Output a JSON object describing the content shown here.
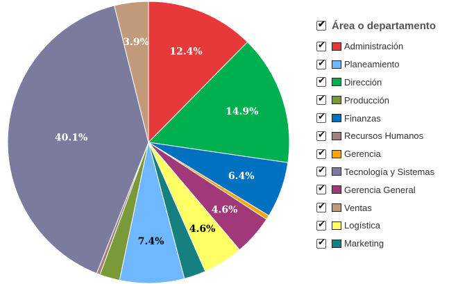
{
  "chart_data": {
    "type": "pie",
    "legend_title": "Área o departamento",
    "legend_position": "right",
    "slices": [
      {
        "name": "Administración",
        "value": 12.4,
        "label": "12.4%",
        "color": "#e8393a",
        "label_color": "#ffffff"
      },
      {
        "name": "Dirección",
        "value": 14.9,
        "label": "14.9%",
        "color": "#00b050",
        "label_color": "#ffffff"
      },
      {
        "name": "Finanzas",
        "value": 6.4,
        "label": "6.4%",
        "color": "#0070c0",
        "label_color": "#ffffff"
      },
      {
        "name": "Gerencia",
        "value": 0.5,
        "label": "",
        "color": "#ffa500",
        "label_color": "#ffffff"
      },
      {
        "name": "Gerencia General",
        "value": 4.6,
        "label": "4.6%",
        "color": "#a0387a",
        "label_color": "#ffffff"
      },
      {
        "name": "Logística",
        "value": 4.6,
        "label": "4.6%",
        "color": "#ffff66",
        "label_color": "#000000"
      },
      {
        "name": "Marketing",
        "value": 2.5,
        "label": "",
        "color": "#168080",
        "label_color": "#ffffff"
      },
      {
        "name": "Planeamiento",
        "value": 7.4,
        "label": "7.4%",
        "color": "#6fb8ff",
        "label_color": "#000000"
      },
      {
        "name": "Producción",
        "value": 2.3,
        "label": "",
        "color": "#7a9a3a",
        "label_color": "#ffffff"
      },
      {
        "name": "Recursos Humanos",
        "value": 0.4,
        "label": "",
        "color": "#a08080",
        "label_color": "#ffffff"
      },
      {
        "name": "Tecnología y Sistemas",
        "value": 40.1,
        "label": "40.1%",
        "color": "#7b7b9e",
        "label_color": "#ffffff"
      },
      {
        "name": "Ventas",
        "value": 3.9,
        "label": "3.9%",
        "color": "#c09a7a",
        "label_color": "#ffffff"
      }
    ],
    "legend_order": [
      "Administración",
      "Planeamiento",
      "Dirección",
      "Producción",
      "Finanzas",
      "Recursos Humanos",
      "Gerencia",
      "Tecnología y Sistemas",
      "Gerencia General",
      "Ventas",
      "Logística",
      "Marketing"
    ]
  }
}
